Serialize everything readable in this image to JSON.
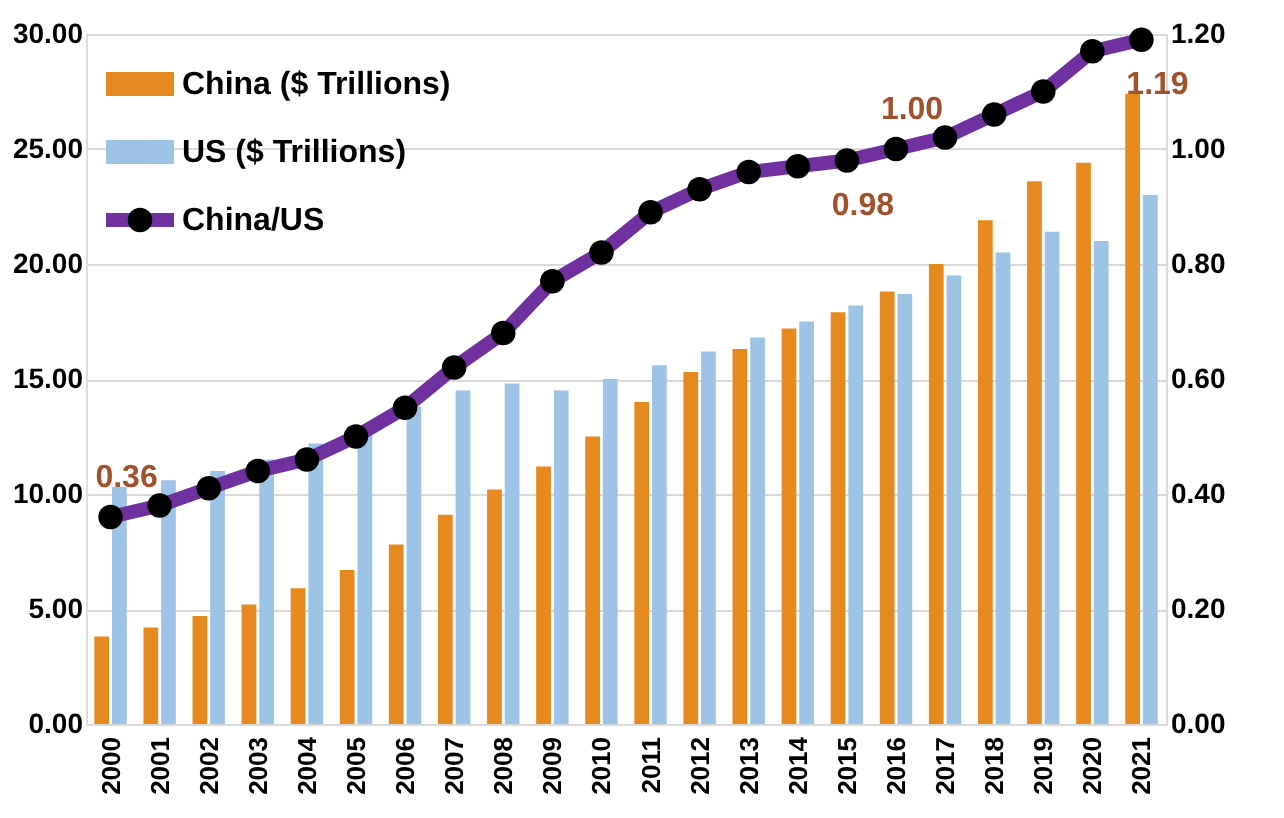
{
  "chart_data": {
    "type": "bar",
    "categories": [
      "2000",
      "2001",
      "2002",
      "2003",
      "2004",
      "2005",
      "2006",
      "2007",
      "2008",
      "2009",
      "2010",
      "2011",
      "2012",
      "2013",
      "2014",
      "2015",
      "2016",
      "2017",
      "2018",
      "2019",
      "2020",
      "2021"
    ],
    "series": [
      {
        "name": "China ($ Trillions)",
        "color": "#e68a1f",
        "values": [
          3.8,
          4.2,
          4.7,
          5.2,
          5.9,
          6.7,
          7.8,
          9.1,
          10.2,
          11.2,
          12.5,
          14.0,
          15.3,
          16.3,
          17.2,
          17.9,
          18.8,
          20.0,
          21.9,
          23.6,
          24.4,
          27.4
        ]
      },
      {
        "name": "US ($ Trillions)",
        "color": "#9dc3e6",
        "values": [
          10.3,
          10.6,
          11.0,
          11.5,
          12.2,
          13.0,
          13.8,
          14.5,
          14.8,
          14.5,
          15.0,
          15.6,
          16.2,
          16.8,
          17.5,
          18.2,
          18.7,
          19.5,
          20.5,
          21.4,
          21.0,
          23.0
        ]
      },
      {
        "name": "China/US",
        "color": "#7030a0",
        "type": "line",
        "axis": "y2",
        "marker": "circle",
        "values": [
          0.36,
          0.38,
          0.41,
          0.44,
          0.46,
          0.5,
          0.55,
          0.62,
          0.68,
          0.77,
          0.82,
          0.89,
          0.93,
          0.96,
          0.97,
          0.98,
          1.0,
          1.02,
          1.06,
          1.1,
          1.17,
          1.19
        ],
        "value_labels": [
          "0.36",
          null,
          null,
          null,
          null,
          null,
          null,
          null,
          null,
          null,
          null,
          null,
          null,
          null,
          null,
          "0.98",
          "1.00",
          null,
          null,
          null,
          null,
          "1.19"
        ]
      }
    ],
    "ylim": [
      0,
      30
    ],
    "yticks": [
      {
        "value": 0,
        "label": "0.00"
      },
      {
        "value": 5,
        "label": "5.00"
      },
      {
        "value": 10,
        "label": "10.00"
      },
      {
        "value": 15,
        "label": "15.00"
      },
      {
        "value": 20,
        "label": "20.00"
      },
      {
        "value": 25,
        "label": "25.00"
      },
      {
        "value": 30,
        "label": "30.00"
      }
    ],
    "y2lim": [
      0,
      1.2
    ],
    "y2ticks": [
      {
        "value": 0,
        "label": "0.00"
      },
      {
        "value": 0.2,
        "label": "0.20"
      },
      {
        "value": 0.4,
        "label": "0.40"
      },
      {
        "value": 0.6,
        "label": "0.60"
      },
      {
        "value": 0.8,
        "label": "0.80"
      },
      {
        "value": 1.0,
        "label": "1.00"
      },
      {
        "value": 1.2,
        "label": "1.20"
      }
    ],
    "grid": "y",
    "legend": "top left"
  }
}
